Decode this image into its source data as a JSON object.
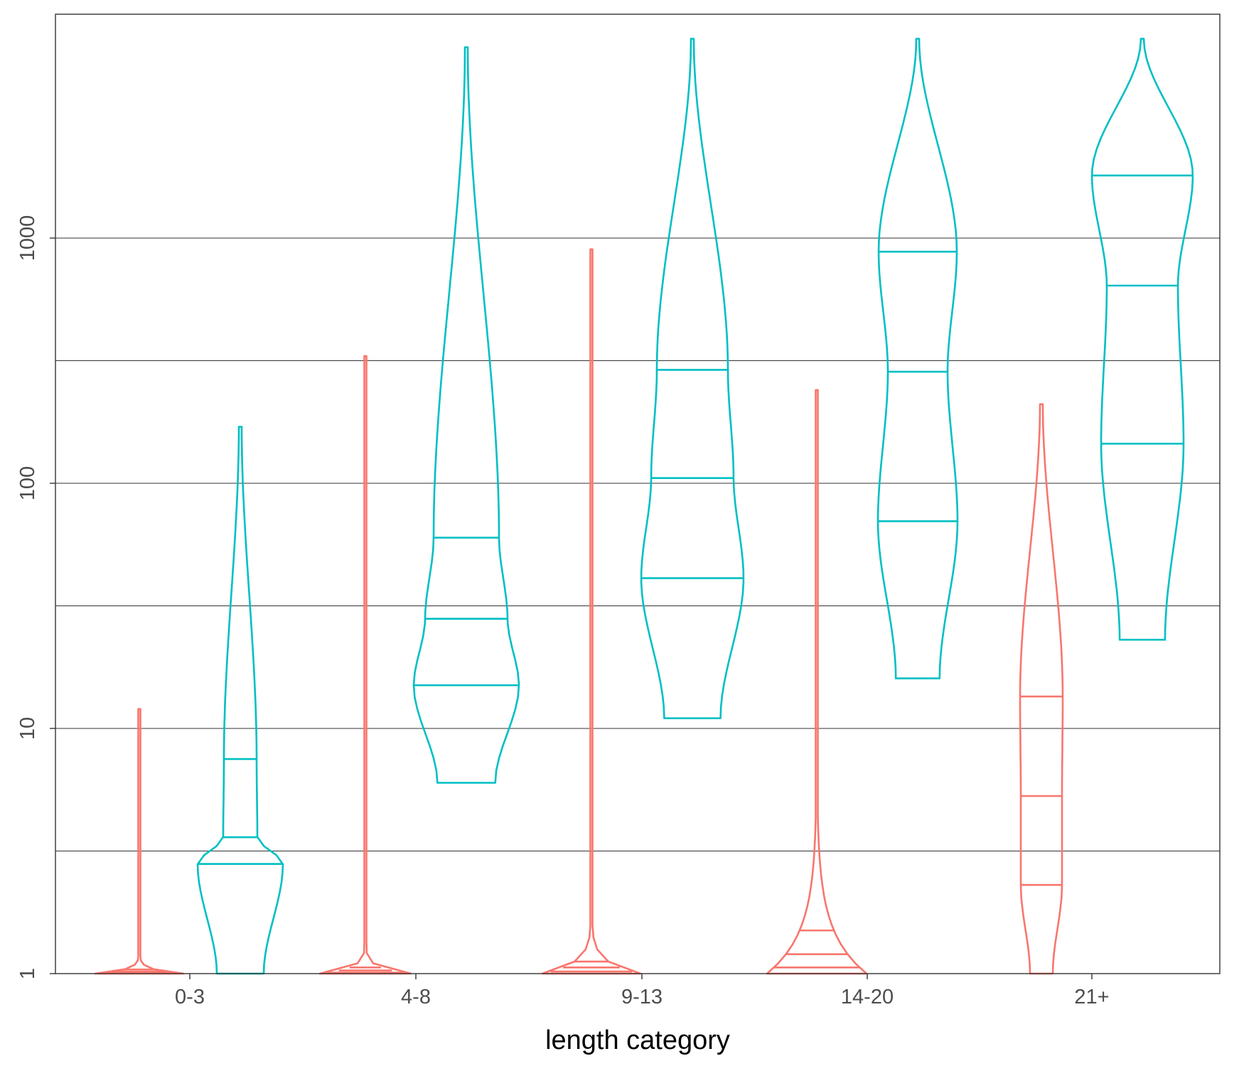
{
  "chart_data": {
    "type": "violin",
    "title": "",
    "xlabel": "length category",
    "ylabel": "",
    "y_scale": "log10",
    "ylim": [
      1,
      7500
    ],
    "y_ticks": [
      1,
      10,
      100,
      1000
    ],
    "y_tick_labels": [
      "1",
      "10",
      "100",
      "1000"
    ],
    "grid": "horizontal major and minor lines",
    "legend": "none",
    "categories": [
      "0-3",
      "4-8",
      "9-13",
      "14-20",
      "21+"
    ],
    "groups": [
      {
        "color": "#F8766D",
        "violins": [
          {
            "category": "0-3",
            "max": 12,
            "quantiles": [
              1.01,
              1.02,
              1.04
            ]
          },
          {
            "category": "4-8",
            "max": 330,
            "quantiles": [
              1.01,
              1.03,
              1.06
            ]
          },
          {
            "category": "9-13",
            "max": 900,
            "quantiles": [
              1.02,
              1.06,
              1.12
            ]
          },
          {
            "category": "14-20",
            "max": 240,
            "quantiles": [
              1.06,
              1.2,
              1.5
            ]
          },
          {
            "category": "21+",
            "max": 210,
            "quantiles": [
              2.3,
              5.3,
              13.5
            ]
          }
        ]
      },
      {
        "color": "#00BFC4",
        "violins": [
          {
            "category": "0-3",
            "min": 1,
            "max": 170,
            "quantiles": [
              2.8,
              3.6,
              7.5
            ]
          },
          {
            "category": "4-8",
            "min": 6,
            "max": 6000,
            "quantiles": [
              15,
              28,
              60
            ]
          },
          {
            "category": "9-13",
            "min": 11,
            "max": 6500,
            "quantiles": [
              41,
              105,
              290
            ]
          },
          {
            "category": "14-20",
            "min": 16,
            "max": 6500,
            "quantiles": [
              70,
              285,
              880
            ]
          },
          {
            "category": "21+",
            "min": 23,
            "max": 6500,
            "quantiles": [
              145,
              640,
              1800
            ]
          }
        ]
      }
    ]
  }
}
